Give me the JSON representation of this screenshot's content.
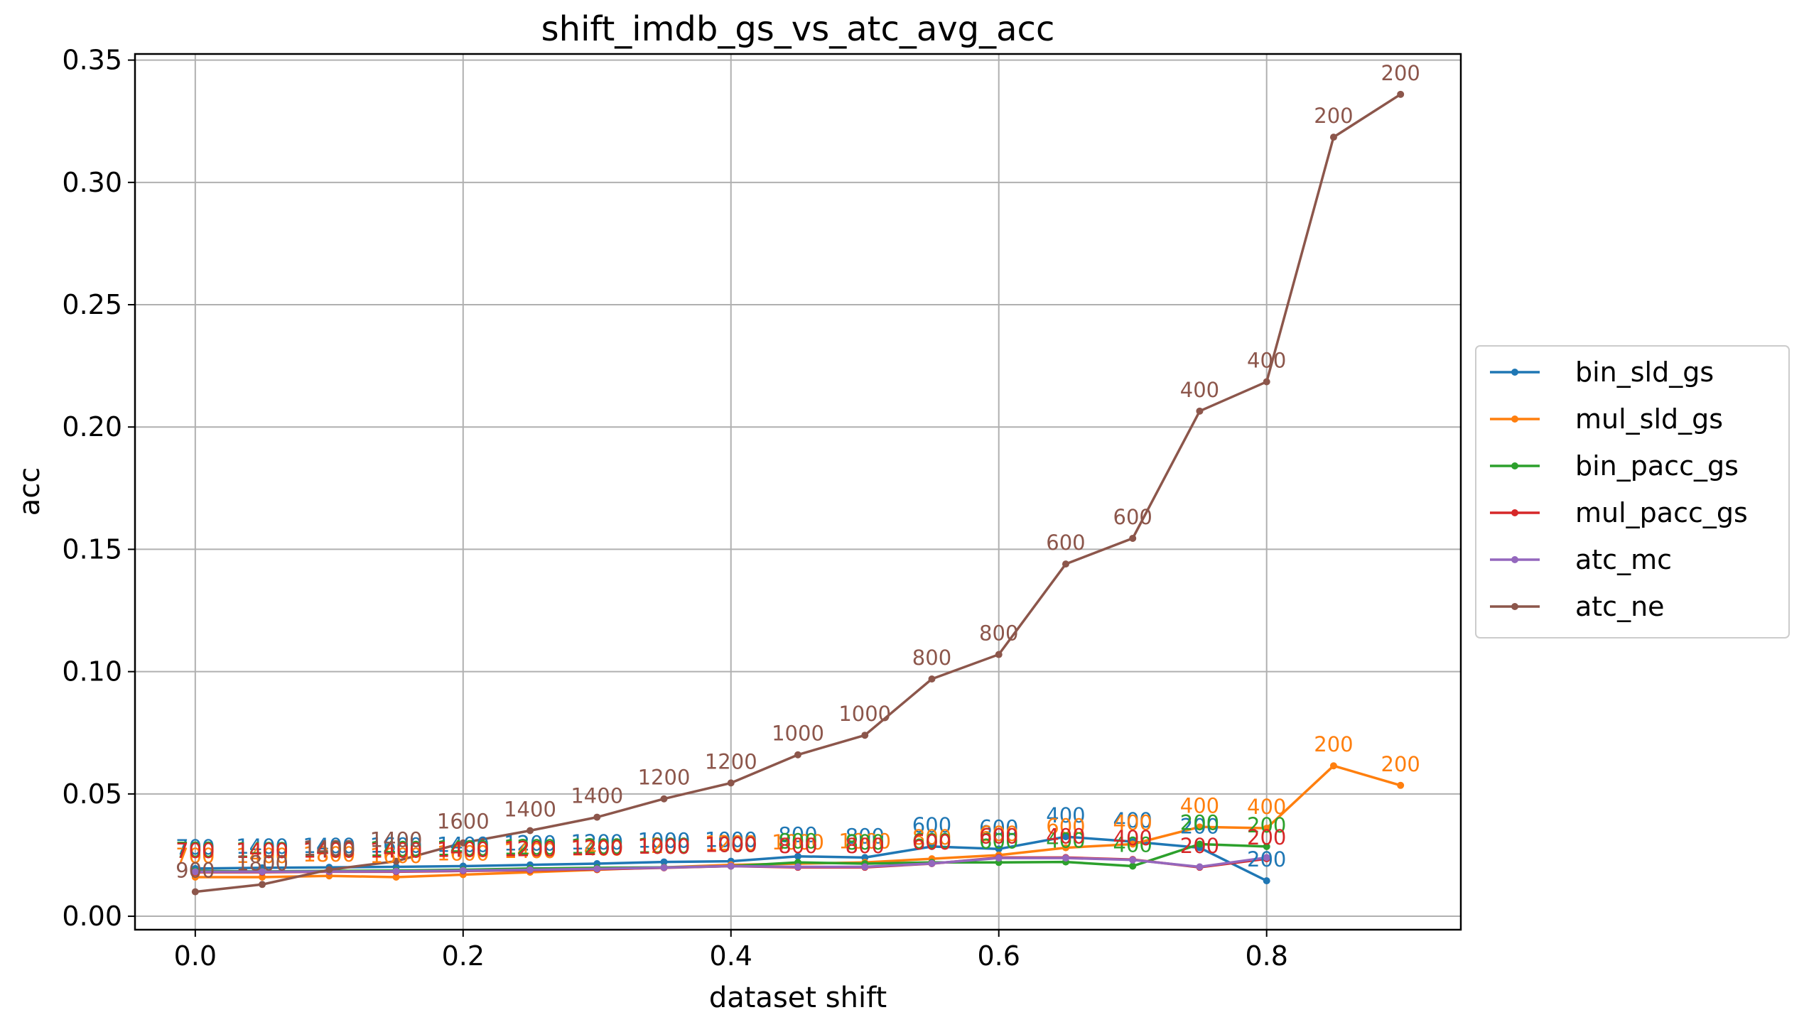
{
  "chart_data": {
    "type": "line",
    "title": "shift_imdb_gs_vs_atc_avg_acc",
    "xlabel": "dataset shift",
    "ylabel": "acc",
    "xlim": [
      -0.045,
      0.945
    ],
    "ylim": [
      -0.0055,
      0.3525
    ],
    "xticks": [
      0.0,
      0.2,
      0.4,
      0.6,
      0.8
    ],
    "xtick_labels": [
      "0.0",
      "0.2",
      "0.4",
      "0.6",
      "0.8"
    ],
    "yticks": [
      0.0,
      0.05,
      0.1,
      0.15,
      0.2,
      0.25,
      0.3,
      0.35
    ],
    "ytick_labels": [
      "0.00",
      "0.05",
      "0.10",
      "0.15",
      "0.20",
      "0.25",
      "0.30",
      "0.35"
    ],
    "grid": true,
    "legend": {
      "placement": "right-outside"
    },
    "series": [
      {
        "name": "bin_sld_gs",
        "color": "#1f77b4",
        "x": [
          0.0,
          0.05,
          0.1,
          0.15,
          0.2,
          0.25,
          0.3,
          0.35,
          0.4,
          0.45,
          0.5,
          0.55,
          0.6,
          0.65,
          0.7,
          0.75,
          0.8
        ],
        "y": [
          0.0195,
          0.0198,
          0.02,
          0.0202,
          0.0205,
          0.021,
          0.0215,
          0.0222,
          0.0225,
          0.0245,
          0.024,
          0.0285,
          0.0275,
          0.0325,
          0.0305,
          0.028,
          0.0145
        ],
        "labels": [
          "700",
          "1400",
          "1400",
          "1600",
          "1400",
          "1200",
          "1200",
          "1000",
          "1000",
          "800",
          "800",
          "600",
          "600",
          "400",
          "400",
          "200",
          "200"
        ]
      },
      {
        "name": "mul_sld_gs",
        "color": "#ff7f0e",
        "x": [
          0.0,
          0.05,
          0.1,
          0.15,
          0.2,
          0.25,
          0.3,
          0.35,
          0.4,
          0.45,
          0.5,
          0.55,
          0.6,
          0.65,
          0.7,
          0.75,
          0.8,
          0.85,
          0.9
        ],
        "y": [
          0.016,
          0.016,
          0.0165,
          0.016,
          0.017,
          0.018,
          0.019,
          0.02,
          0.021,
          0.0215,
          0.022,
          0.0235,
          0.025,
          0.028,
          0.0295,
          0.0365,
          0.036,
          0.0615,
          0.0535
        ],
        "labels": [
          "700",
          "1400",
          "1800",
          "1600",
          "1600",
          "1400",
          "1400",
          "1200",
          "1200",
          "1000",
          "1000",
          "800",
          "600",
          "600",
          "400",
          "400",
          "400",
          "200",
          "200"
        ]
      },
      {
        "name": "bin_pacc_gs",
        "color": "#2ca02c",
        "x": [
          0.0,
          0.05,
          0.1,
          0.15,
          0.2,
          0.25,
          0.3,
          0.35,
          0.4,
          0.45,
          0.5,
          0.55,
          0.6,
          0.65,
          0.7,
          0.75,
          0.8
        ],
        "y": [
          0.0185,
          0.0183,
          0.0185,
          0.0187,
          0.019,
          0.0195,
          0.0198,
          0.02,
          0.0205,
          0.022,
          0.0215,
          0.022,
          0.022,
          0.0222,
          0.0205,
          0.0295,
          0.0285
        ],
        "labels": [
          "700",
          "1400",
          "1400",
          "1400",
          "1400",
          "1200",
          "1200",
          "1000",
          "1000",
          "800",
          "800",
          "600",
          "600",
          "400",
          "400",
          "200",
          "200"
        ]
      },
      {
        "name": "mul_pacc_gs",
        "color": "#d62728",
        "x": [
          0.0,
          0.05,
          0.1,
          0.15,
          0.2,
          0.25,
          0.3,
          0.35,
          0.4,
          0.45,
          0.5,
          0.55,
          0.6,
          0.65,
          0.7,
          0.75,
          0.8
        ],
        "y": [
          0.018,
          0.018,
          0.0182,
          0.0182,
          0.0185,
          0.0188,
          0.0192,
          0.0198,
          0.0205,
          0.02,
          0.02,
          0.0215,
          0.024,
          0.024,
          0.0232,
          0.02,
          0.0235
        ],
        "labels": [
          "700",
          "1400",
          "1400",
          "1400",
          "1400",
          "1200",
          "1200",
          "1000",
          "1000",
          "800",
          "800",
          "600",
          "600",
          "400",
          "400",
          "200",
          "200"
        ]
      },
      {
        "name": "atc_mc",
        "color": "#9467bd",
        "x": [
          0.0,
          0.05,
          0.1,
          0.15,
          0.2,
          0.25,
          0.3,
          0.35,
          0.4,
          0.45,
          0.5,
          0.55,
          0.6,
          0.65,
          0.7,
          0.75,
          0.8
        ],
        "y": [
          0.0182,
          0.0182,
          0.0183,
          0.0184,
          0.0187,
          0.019,
          0.0194,
          0.0199,
          0.0205,
          0.0202,
          0.0202,
          0.0216,
          0.0238,
          0.0238,
          0.023,
          0.0202,
          0.024
        ],
        "labels": []
      },
      {
        "name": "atc_ne",
        "color": "#8c564b",
        "x": [
          0.0,
          0.05,
          0.1,
          0.15,
          0.2,
          0.25,
          0.3,
          0.35,
          0.4,
          0.45,
          0.5,
          0.55,
          0.6,
          0.65,
          0.7,
          0.75,
          0.8,
          0.85,
          0.9
        ],
        "y": [
          0.01,
          0.013,
          0.019,
          0.0225,
          0.03,
          0.035,
          0.0405,
          0.048,
          0.0545,
          0.066,
          0.074,
          0.097,
          0.107,
          0.144,
          0.1545,
          0.2065,
          0.2185,
          0.3185,
          0.336
        ],
        "labels": [
          "900",
          "1800",
          "1400",
          "1400",
          "1600",
          "1400",
          "1400",
          "1200",
          "1200",
          "1000",
          "1000",
          "800",
          "800",
          "600",
          "600",
          "400",
          "400",
          "200",
          "200"
        ]
      }
    ]
  }
}
